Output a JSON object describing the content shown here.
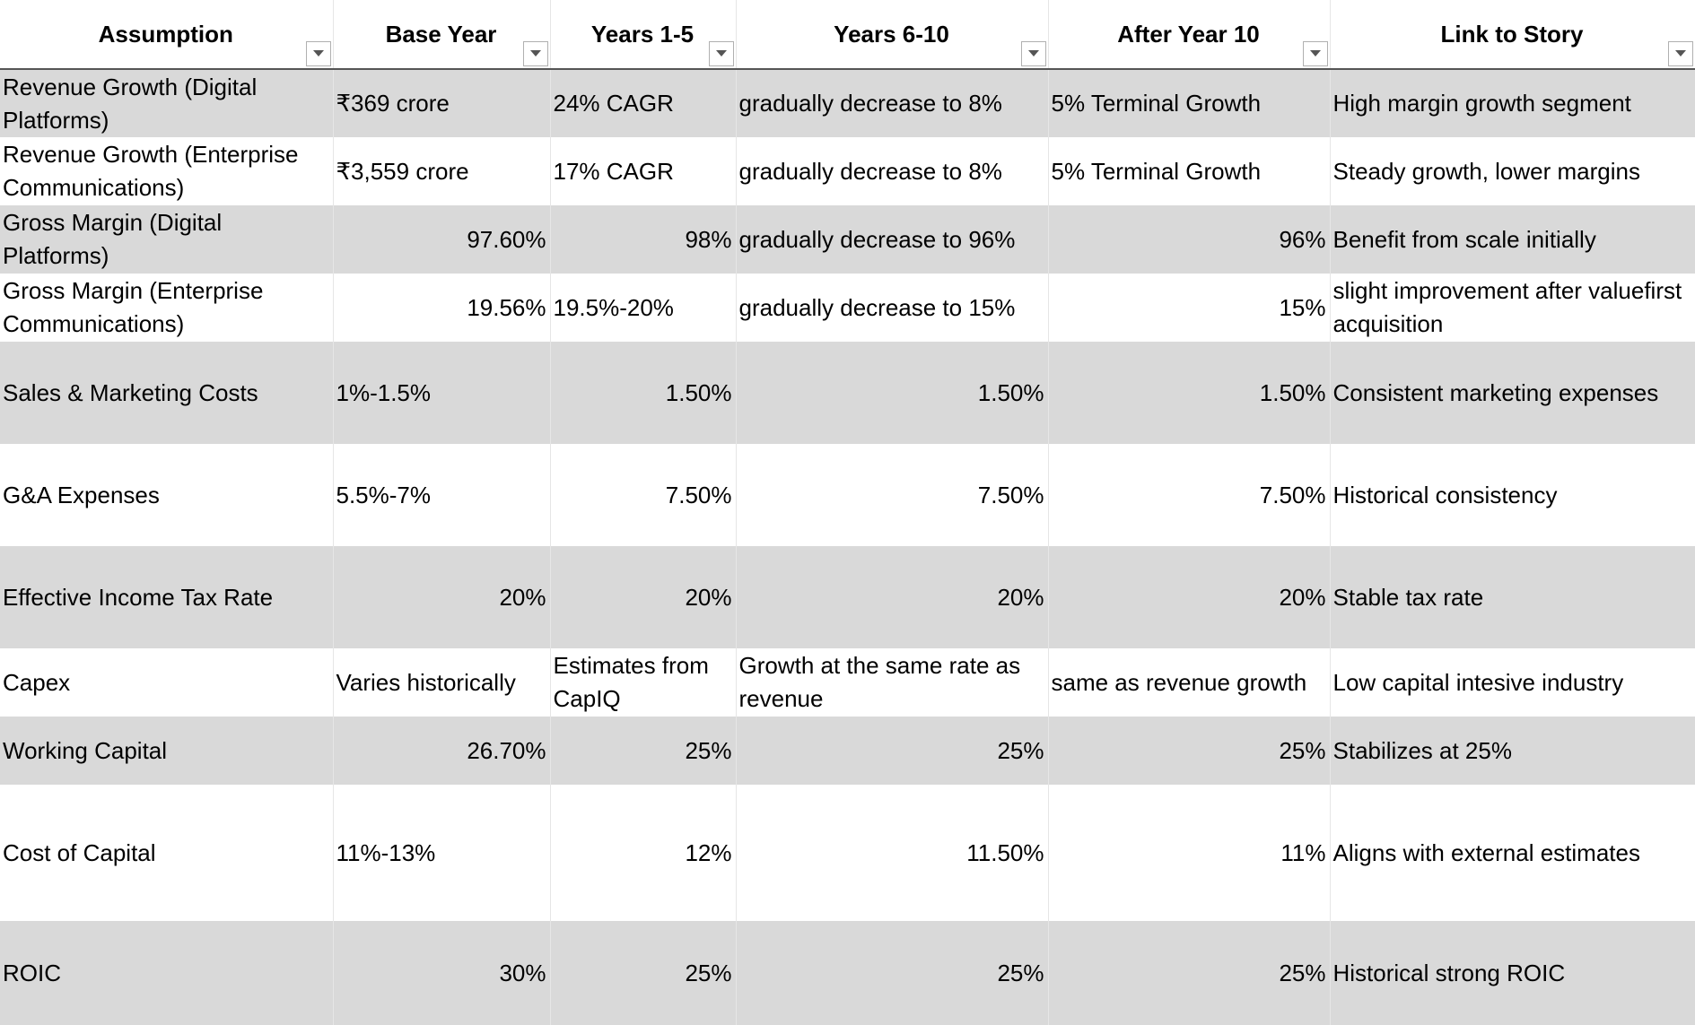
{
  "headers": [
    "Assumption",
    "Base Year",
    "Years 1-5",
    "Years 6-10",
    "After Year 10",
    "Link to Story"
  ],
  "filter_icon": "filter-dropdown-icon",
  "rows": [
    {
      "cells": [
        "Revenue Growth (Digital Platforms)",
        "₹369 crore",
        "24% CAGR",
        "gradually decrease to 8%",
        "5% Terminal Growth",
        "High margin growth segment"
      ]
    },
    {
      "cells": [
        "Revenue Growth (Enterprise Communications)",
        "₹3,559 crore",
        "17% CAGR",
        "gradually decrease to 8%",
        "5% Terminal Growth",
        "Steady growth, lower margins"
      ]
    },
    {
      "cells": [
        "Gross Margin (Digital Platforms)",
        "97.60%",
        "98%",
        "gradually decrease to 96%",
        "96%",
        "Benefit from scale initially"
      ]
    },
    {
      "cells": [
        "Gross Margin (Enterprise Communications)",
        "19.56%",
        "19.5%-20%",
        "gradually decrease to 15%",
        "15%",
        "slight improvement after valuefirst acquisition"
      ]
    },
    {
      "cells": [
        "Sales & Marketing Costs",
        "1%-1.5%",
        "1.50%",
        "1.50%",
        "1.50%",
        "Consistent marketing expenses"
      ]
    },
    {
      "cells": [
        "G&A Expenses",
        "5.5%-7%",
        "7.50%",
        "7.50%",
        "7.50%",
        "Historical consistency"
      ]
    },
    {
      "cells": [
        "Effective Income Tax Rate",
        "20%",
        "20%",
        "20%",
        "20%",
        "Stable tax rate"
      ]
    },
    {
      "cells": [
        "Capex",
        "Varies historically",
        "Estimates from CapIQ",
        "Growth at the same rate as revenue",
        "same as revenue growth",
        "Low capital intesive industry"
      ]
    },
    {
      "cells": [
        "Working Capital",
        "26.70%",
        "25%",
        "25%",
        "25%",
        "Stabilizes at 25%"
      ]
    },
    {
      "cells": [
        "Cost of Capital",
        "11%-13%",
        "12%",
        "11.50%",
        "11%",
        "Aligns with external estimates"
      ]
    },
    {
      "cells": [
        "ROIC",
        "30%",
        "25%",
        "25%",
        "25%",
        "Historical strong ROIC"
      ]
    }
  ],
  "colors": {
    "shade": "#d9d9d9",
    "plain": "#ffffff",
    "header_border": "#555555"
  }
}
